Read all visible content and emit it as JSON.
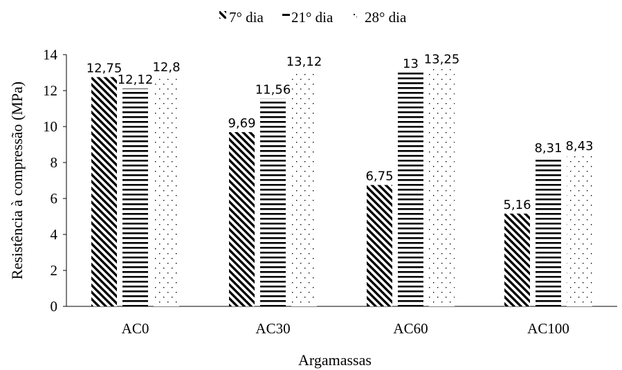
{
  "chart_data": {
    "type": "bar",
    "title": "",
    "xlabel": "Argamassas",
    "ylabel": "Resistência à compressão (MPa)",
    "ylim": [
      0,
      14
    ],
    "yticks": [
      "0",
      "2",
      "4",
      "6",
      "8",
      "10",
      "12",
      "14"
    ],
    "grid": false,
    "legend_position": "top",
    "categories": [
      "AC0",
      "AC30",
      "AC60",
      "AC100"
    ],
    "series": [
      {
        "name": "7° dia",
        "pattern": "diagonal",
        "color": "#000000",
        "values": [
          12.75,
          9.69,
          6.75,
          5.16
        ],
        "labels": [
          "12,75",
          "9,69",
          "6,75",
          "5,16"
        ]
      },
      {
        "name": "21° dia",
        "pattern": "horizontal",
        "color": "#000000",
        "values": [
          12.12,
          11.56,
          13,
          8.31
        ],
        "labels": [
          "12,12",
          "11,56",
          "13",
          "8,31"
        ]
      },
      {
        "name": "28° dia",
        "pattern": "dotted",
        "color": "#000000",
        "values": [
          12.8,
          13.12,
          13.25,
          8.43
        ],
        "labels": [
          "12,8",
          "13,12",
          "13,25",
          "8,43"
        ]
      }
    ]
  }
}
